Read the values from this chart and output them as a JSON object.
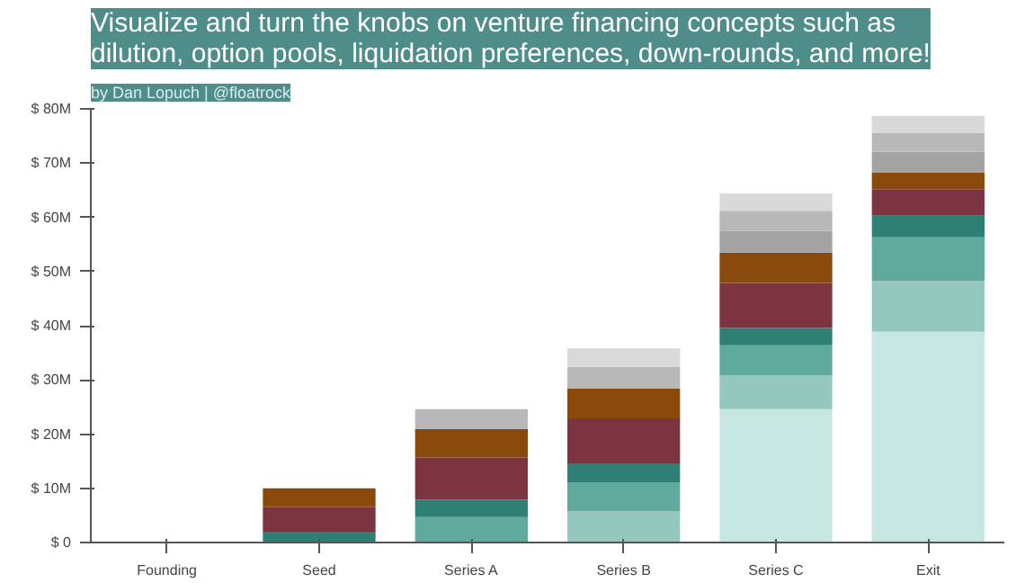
{
  "chart_data": {
    "type": "bar",
    "title": "Visualize and turn the knobs on venture financing concepts such as\ndilution, option pools, liquidation preferences, down-rounds, and more!",
    "annotations": [
      "by Dan Lopuch | @floatrock"
    ],
    "categories": [
      "Founding",
      "Seed",
      "Series A",
      "Series B",
      "Series C",
      "Exit"
    ],
    "stacked": true,
    "ylim": [
      0,
      80
    ],
    "yticks": [
      {
        "value": 0,
        "label": "$ 0"
      },
      {
        "value": 10,
        "label": "$ 10M"
      },
      {
        "value": 20,
        "label": "$ 20M"
      },
      {
        "value": 30,
        "label": "$ 30M"
      },
      {
        "value": 40,
        "label": "$ 40M"
      },
      {
        "value": 50,
        "label": "$ 50M"
      },
      {
        "value": 60,
        "label": "$ 60M"
      },
      {
        "value": 70,
        "label": "$ 70M"
      },
      {
        "value": 80,
        "label": "$ 80M"
      }
    ],
    "grid": false,
    "series": [
      {
        "color": "#c6e8e1",
        "values": [
          0,
          0,
          0,
          0,
          24.6,
          38.9
        ]
      },
      {
        "color": "#94c8bf",
        "values": [
          0,
          0,
          0,
          5.8,
          6.2,
          9.3
        ]
      },
      {
        "color": "#5fa99d",
        "values": [
          0,
          0,
          4.7,
          5.3,
          5.6,
          8.1
        ]
      },
      {
        "color": "#2e7f74",
        "values": [
          0,
          2,
          3.2,
          3.5,
          3.2,
          4.0
        ]
      },
      {
        "color": "#7c3441",
        "values": [
          0,
          4.5,
          7.8,
          8.3,
          8.3,
          4.9
        ]
      },
      {
        "color": "#8a4a0c",
        "values": [
          0,
          3.5,
          5.2,
          5.5,
          5.6,
          3.1
        ]
      },
      {
        "color": "#a3a3a3",
        "values": [
          0,
          0,
          0,
          0,
          4.0,
          3.8
        ]
      },
      {
        "color": "#b8b8b8",
        "values": [
          0,
          0,
          3.7,
          4.0,
          3.7,
          3.4
        ]
      },
      {
        "color": "#d9d9d9",
        "values": [
          0,
          0,
          0,
          3.4,
          3.2,
          3.2
        ]
      }
    ]
  }
}
